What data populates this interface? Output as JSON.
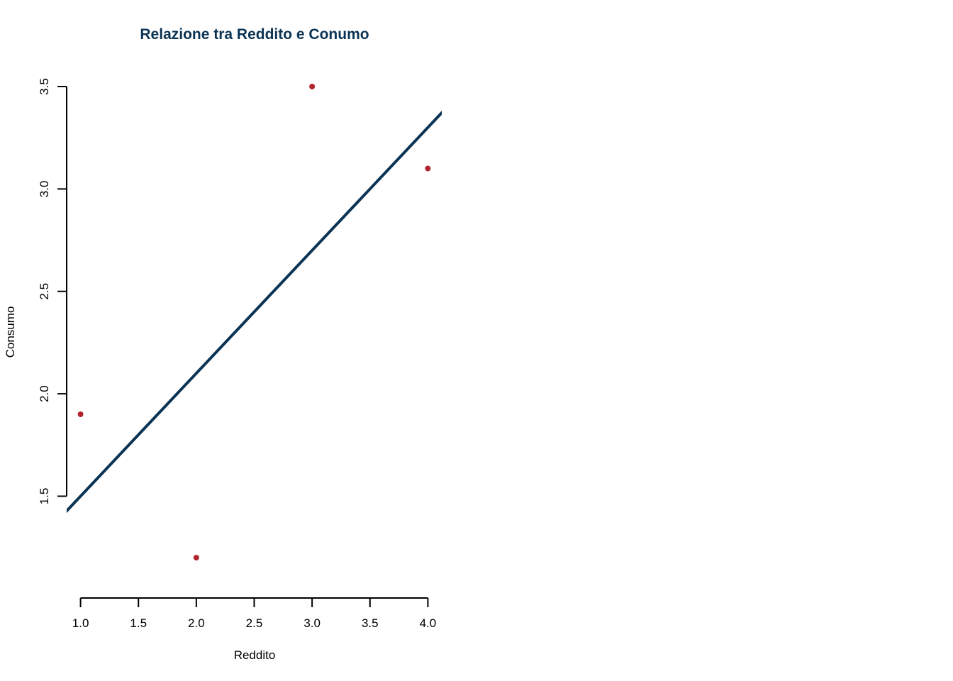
{
  "chart_data": {
    "type": "scatter",
    "title": "Relazione tra Reddito e Conumo",
    "xlabel": "Reddito",
    "ylabel": "Consumo",
    "x_ticks": [
      "1.0",
      "1.5",
      "2.0",
      "2.5",
      "3.0",
      "3.5",
      "4.0"
    ],
    "y_ticks": [
      "1.5",
      "2.0",
      "2.5",
      "3.0",
      "3.5"
    ],
    "xlim": [
      0.88,
      4.12
    ],
    "ylim": [
      1.1,
      3.5
    ],
    "points": [
      {
        "x": 1.0,
        "y": 1.9
      },
      {
        "x": 2.0,
        "y": 1.2
      },
      {
        "x": 3.0,
        "y": 3.5
      },
      {
        "x": 4.0,
        "y": 3.1
      }
    ],
    "regression_line": {
      "intercept": 0.9,
      "slope": 0.6
    },
    "grid": false,
    "legend": "none",
    "colors": {
      "title": "#0b3353",
      "line": "#0b3353",
      "points": "#b0262e",
      "axis": "#000000"
    }
  }
}
